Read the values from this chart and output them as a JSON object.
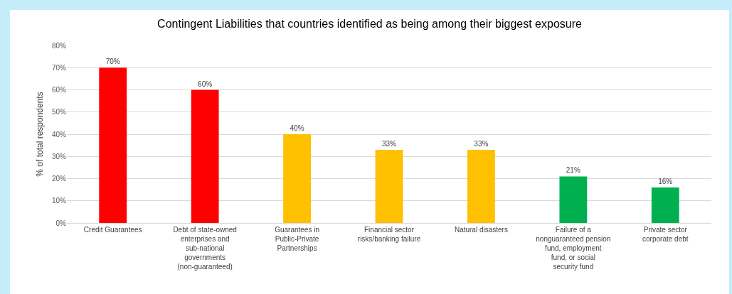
{
  "chart_data": {
    "type": "bar",
    "title": "Contingent Liabilities that countries identified as being among their biggest exposure",
    "ylabel": "% of total respondents",
    "categories": [
      "Credit Guarantees",
      "Debt of state-owned enterprises and sub-national governments (non-guaranteed)",
      "Guarantees in Public-Private Partnerships",
      "Financial sector risks/banking failure",
      "Natural disasters",
      "Failure of a nonguaranteed pension fund, employment fund, or social security fund",
      "Private sector corporate debt"
    ],
    "values": [
      70,
      60,
      40,
      33,
      33,
      21,
      16
    ],
    "value_labels": [
      "70%",
      "60%",
      "40%",
      "33%",
      "33%",
      "21%",
      "16%"
    ],
    "colors": [
      "#ff0000",
      "#ff0000",
      "#ffc000",
      "#ffc000",
      "#ffc000",
      "#00b050",
      "#00b050"
    ],
    "ylim": [
      0,
      80
    ],
    "yticks": [
      {
        "value": 0,
        "label": "0%"
      },
      {
        "value": 10,
        "label": "10%"
      },
      {
        "value": 20,
        "label": "20%"
      },
      {
        "value": 30,
        "label": "30%"
      },
      {
        "value": 40,
        "label": "40%"
      },
      {
        "value": 50,
        "label": "50%"
      },
      {
        "value": 60,
        "label": "60%"
      },
      {
        "value": 70,
        "label": "70%"
      },
      {
        "value": 80,
        "label": "80%"
      }
    ],
    "grid": "y"
  }
}
